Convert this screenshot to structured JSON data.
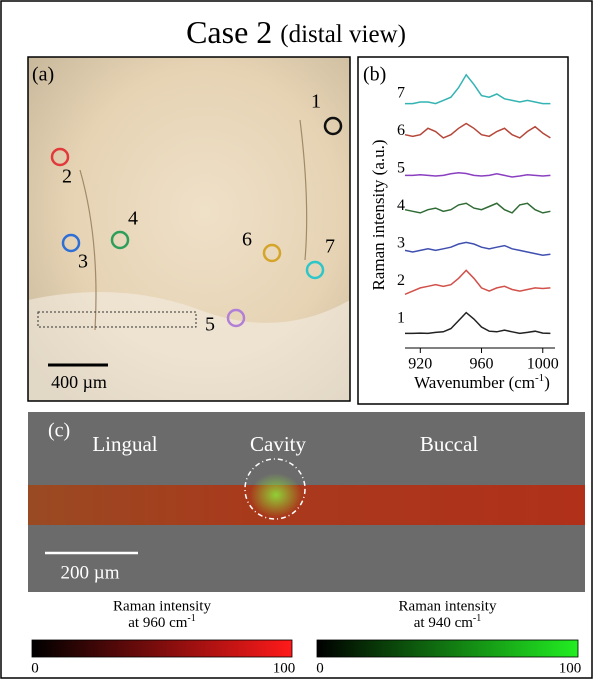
{
  "title": "Case 2",
  "title_suffix": "(distal view)",
  "panel_a": {
    "label": "(a)",
    "scale_bar": "400 µm",
    "markers": [
      {
        "label": "1",
        "color": "#111111"
      },
      {
        "label": "2",
        "color": "#e03a3a"
      },
      {
        "label": "3",
        "color": "#2d6fd6"
      },
      {
        "label": "4",
        "color": "#2f9e5a"
      },
      {
        "label": "5",
        "color": "#b27fd6"
      },
      {
        "label": "6",
        "color": "#d4a52a"
      },
      {
        "label": "7",
        "color": "#2ec6c9"
      }
    ]
  },
  "chart_data": {
    "type": "line",
    "label": "(b)",
    "y_label": "Raman intensity (a.u.)",
    "x_label": "Wavenumber (cm",
    "x_label_sup": "-1",
    "x_label_end": ")",
    "x": [
      910,
      915,
      920,
      925,
      930,
      935,
      940,
      945,
      950,
      955,
      960,
      965,
      970,
      975,
      980,
      985,
      990,
      995,
      1000,
      1005
    ],
    "xlim": [
      910,
      1008
    ],
    "xticks": [
      920,
      960,
      1000
    ],
    "series": [
      {
        "name": "1",
        "color": "#222222",
        "values": [
          0.05,
          0.05,
          0.06,
          0.05,
          0.08,
          0.1,
          0.2,
          0.45,
          0.7,
          0.5,
          0.25,
          0.12,
          0.1,
          0.15,
          0.1,
          0.05,
          0.08,
          0.12,
          0.06,
          0.05
        ]
      },
      {
        "name": "2",
        "color": "#d2504a",
        "values": [
          0.1,
          0.2,
          0.3,
          0.35,
          0.4,
          0.35,
          0.4,
          0.6,
          0.85,
          0.6,
          0.3,
          0.2,
          0.3,
          0.35,
          0.25,
          0.2,
          0.25,
          0.3,
          0.28,
          0.3
        ]
      },
      {
        "name": "3",
        "color": "#3f4fb0",
        "values": [
          0.3,
          0.25,
          0.3,
          0.35,
          0.3,
          0.35,
          0.4,
          0.5,
          0.55,
          0.5,
          0.4,
          0.35,
          0.4,
          0.45,
          0.35,
          0.3,
          0.25,
          0.2,
          0.15,
          0.18
        ]
      },
      {
        "name": "4",
        "color": "#2f6b35",
        "values": [
          0.4,
          0.35,
          0.3,
          0.4,
          0.45,
          0.35,
          0.4,
          0.55,
          0.6,
          0.45,
          0.4,
          0.5,
          0.6,
          0.4,
          0.3,
          0.55,
          0.6,
          0.4,
          0.3,
          0.35
        ]
      },
      {
        "name": "5",
        "color": "#8a3fc0",
        "values": [
          0.3,
          0.3,
          0.32,
          0.3,
          0.28,
          0.3,
          0.35,
          0.38,
          0.36,
          0.3,
          0.28,
          0.3,
          0.35,
          0.3,
          0.25,
          0.28,
          0.32,
          0.3,
          0.28,
          0.3
        ]
      },
      {
        "name": "6",
        "color": "#b5473a",
        "values": [
          0.4,
          0.35,
          0.4,
          0.6,
          0.5,
          0.3,
          0.4,
          0.6,
          0.75,
          0.6,
          0.4,
          0.35,
          0.5,
          0.6,
          0.4,
          0.3,
          0.5,
          0.65,
          0.45,
          0.3
        ]
      },
      {
        "name": "7",
        "color": "#34b3b3",
        "values": [
          0.2,
          0.2,
          0.25,
          0.25,
          0.2,
          0.3,
          0.4,
          0.7,
          1.1,
          0.8,
          0.45,
          0.4,
          0.5,
          0.35,
          0.3,
          0.25,
          0.3,
          0.25,
          0.2,
          0.2
        ]
      }
    ]
  },
  "panel_c": {
    "label": "(c)",
    "regions": [
      "Lingual",
      "Cavity",
      "Buccal"
    ],
    "scale_bar": "200 µm"
  },
  "colorbars": [
    {
      "title": "Raman intensity",
      "subtitle": "at 960 cm",
      "sup": "-1",
      "min": 0,
      "max": 100,
      "color": "#ff1a1a"
    },
    {
      "title": "Raman intensity",
      "subtitle": "at 940 cm",
      "sup": "-1",
      "min": 0,
      "max": 100,
      "color": "#22ee22"
    }
  ]
}
